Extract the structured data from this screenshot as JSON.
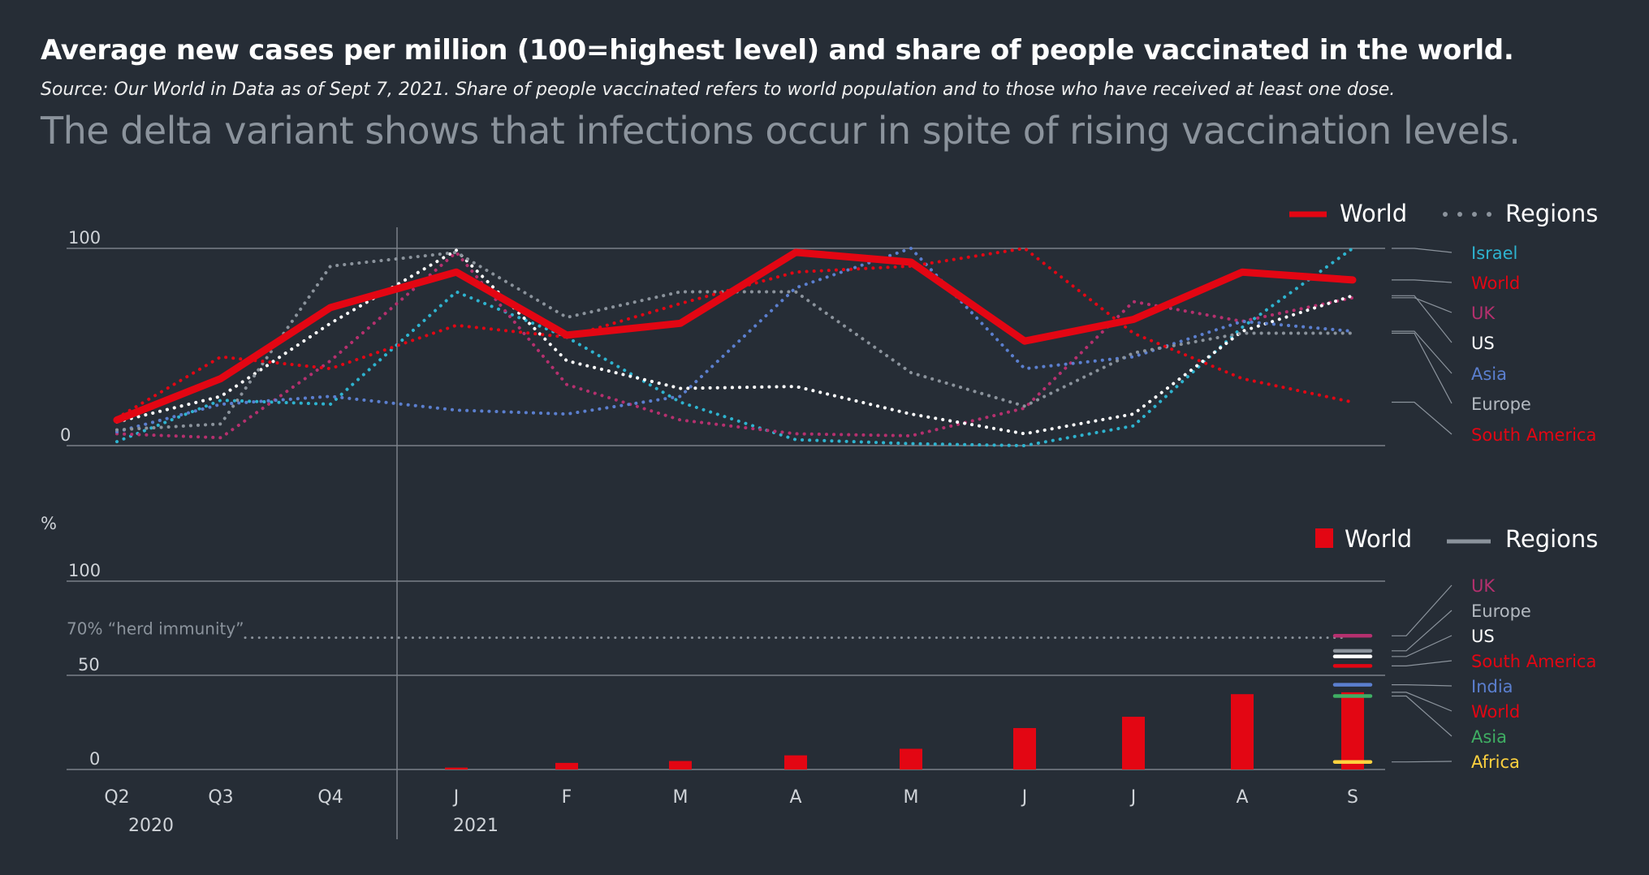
{
  "header": {
    "title": "Average new cases per million (100=highest level) and share of people vaccinated in the world.",
    "source": "Source:  Our World in Data as of Sept 7, 2021. Share of people vaccinated refers to world population and to those who have received at least one dose.",
    "subtitle": "The delta variant shows that infections occur in spite of rising vaccination levels."
  },
  "colors": {
    "background": "#262d36",
    "world": "#e30613",
    "israel": "#2eb3cf",
    "uk": "#b5306e",
    "us": "#ffffff",
    "asia_cases": "#5b7fcf",
    "europe": "#8b939c",
    "south_america": "#e30613",
    "india": "#5b7fcf",
    "asia_vacc": "#3fae63",
    "africa": "#ffd23f",
    "grid": "#7a8089"
  },
  "chart_data": [
    {
      "type": "line",
      "ylabel": "",
      "ylim": [
        0,
        100
      ],
      "y_ticks": [
        "0",
        "100"
      ],
      "x": [
        "Q2",
        "Q3",
        "Q4",
        "J",
        "F",
        "M",
        "A",
        "M",
        "J",
        "J",
        "A",
        "S"
      ],
      "year_labels": [
        "2020",
        "2021"
      ],
      "legend": {
        "solid": "World",
        "dotted": "Regions",
        "position": "top-right"
      },
      "series": [
        {
          "name": "World",
          "style": "solid",
          "color": "#e30613",
          "values": [
            13,
            34,
            70,
            88,
            56,
            62,
            98,
            93,
            53,
            64,
            88,
            84
          ]
        },
        {
          "name": "Israel",
          "style": "dotted",
          "color": "#2eb3cf",
          "values": [
            2,
            23,
            21,
            78,
            55,
            22,
            3,
            1,
            0,
            10,
            60,
            100
          ]
        },
        {
          "name": "UK",
          "style": "dotted",
          "color": "#b5306e",
          "values": [
            6,
            4,
            43,
            98,
            31,
            13,
            6,
            5,
            19,
            73,
            63,
            75
          ]
        },
        {
          "name": "US",
          "style": "dotted",
          "color": "#ffffff",
          "values": [
            12,
            25,
            62,
            99,
            43,
            29,
            30,
            16,
            6,
            16,
            58,
            76
          ]
        },
        {
          "name": "Asia",
          "style": "dotted",
          "color": "#5b7fcf",
          "values": [
            7,
            21,
            25,
            18,
            16,
            25,
            80,
            100,
            39,
            45,
            63,
            58
          ]
        },
        {
          "name": "Europe",
          "style": "dotted",
          "color": "#8b939c",
          "values": [
            8,
            11,
            91,
            98,
            65,
            78,
            78,
            37,
            20,
            47,
            57,
            57
          ]
        },
        {
          "name": "South America",
          "style": "dotted",
          "color": "#e30613",
          "values": [
            14,
            45,
            39,
            61,
            55,
            72,
            88,
            91,
            100,
            57,
            34,
            22
          ]
        }
      ],
      "right_labels": [
        "Israel",
        "World",
        "UK",
        "US",
        "Asia",
        "Europe",
        "South America"
      ]
    },
    {
      "type": "bar",
      "ylabel": "%",
      "ylim": [
        0,
        100
      ],
      "y_ticks": [
        "0",
        "50",
        "100"
      ],
      "categories": [
        "Q2",
        "Q3",
        "Q4",
        "J",
        "F",
        "M",
        "A",
        "M",
        "J",
        "J",
        "A",
        "S"
      ],
      "year_labels": [
        "2020",
        "2021"
      ],
      "legend": {
        "bar": "World",
        "line": "Regions",
        "position": "top-right"
      },
      "reference_line": {
        "value": 70,
        "label": "70% “herd immunity”"
      },
      "series": [
        {
          "name": "World",
          "color": "#e30613",
          "values": [
            0,
            0,
            0,
            1,
            3.5,
            4.5,
            7.5,
            11,
            22,
            28,
            40,
            41
          ]
        }
      ],
      "region_levels": [
        {
          "name": "UK",
          "value": 71,
          "color": "#b5306e"
        },
        {
          "name": "Europe",
          "value": 63,
          "color": "#8b939c"
        },
        {
          "name": "US",
          "value": 60,
          "color": "#ffffff"
        },
        {
          "name": "South America",
          "value": 55,
          "color": "#e30613"
        },
        {
          "name": "India",
          "value": 45,
          "color": "#5b7fcf"
        },
        {
          "name": "World",
          "value": 41,
          "color": "#e30613"
        },
        {
          "name": "Asia",
          "value": 39,
          "color": "#3fae63"
        },
        {
          "name": "Africa",
          "value": 4,
          "color": "#ffd23f"
        }
      ]
    }
  ]
}
